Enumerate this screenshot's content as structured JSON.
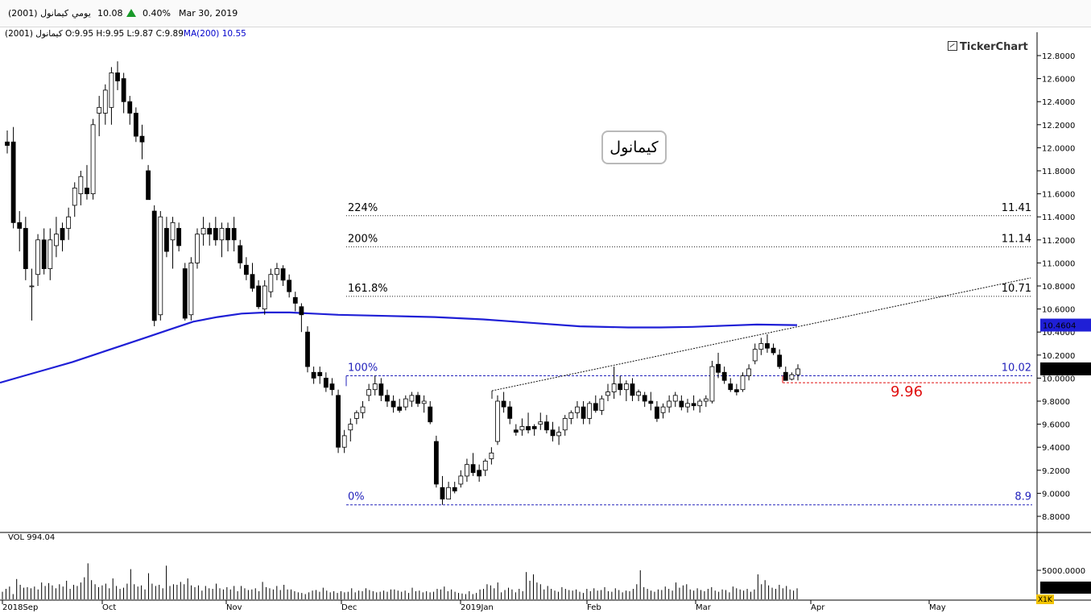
{
  "toolbar": {
    "symbol": "كيمانول (2001)",
    "period": "يومي",
    "price": "10.08",
    "change_pct": "0.40%",
    "date": "Mar 30, 2019"
  },
  "ohlc": {
    "name": "كيمانول (2001)",
    "open": "O:9.95",
    "high": "H:9.95",
    "low": "L:9.87",
    "close": "C:9.89",
    "ma_label": "MA(200)",
    "ma_value": "10.55"
  },
  "brand": "TickerChart",
  "title": "كيمانول",
  "volume": {
    "label": "VOL 994.04",
    "tick_label": "5000.0000",
    "current_box": "1701.3870",
    "scale_box": "X1K"
  },
  "colors": {
    "ma": "#1f1fd6",
    "level_blue": "#2222bb",
    "level_red": "#e01010",
    "current_box": "#000000",
    "ma_box": "#1f1fd6",
    "up_arrow": "#1a9a2a"
  },
  "chart_data": {
    "type": "candlestick",
    "ylim": [
      8.7,
      12.9
    ],
    "y_ticks": [
      "12.8000",
      "12.6000",
      "12.4000",
      "12.2000",
      "12.0000",
      "11.8000",
      "11.6000",
      "11.4000",
      "11.2000",
      "11.0000",
      "10.8000",
      "10.6000",
      "10.4000",
      "10.2000",
      "10.0000",
      "9.8000",
      "9.6000",
      "9.4000",
      "9.2000",
      "9.0000",
      "8.8000"
    ],
    "x_ticks": [
      "2018Sep",
      "Oct",
      "Nov",
      "Dec",
      "2019Jan",
      "Feb",
      "Mar",
      "Apr",
      "May"
    ],
    "current_price_box": "10.0800",
    "ma_box": "10.4604",
    "levels": [
      {
        "pct": "224%",
        "value_label": "11.41",
        "value": 11.41,
        "style": "dotted-gray"
      },
      {
        "pct": "200%",
        "value_label": "11.14",
        "value": 11.14,
        "style": "dotted-gray"
      },
      {
        "pct": "161.8%",
        "value_label": "10.71",
        "value": 10.71,
        "style": "dotted-gray"
      },
      {
        "pct": "100%",
        "value_label": "10.02",
        "value": 10.02,
        "style": "dashed-blue"
      },
      {
        "pct": "0%",
        "value_label": "8.9",
        "value": 8.9,
        "style": "dashed-blue"
      }
    ],
    "support_label": "9.96",
    "support_value": 9.96,
    "ohlc": [
      [
        12.05,
        12.15,
        11.95,
        12.02
      ],
      [
        12.05,
        12.18,
        11.3,
        11.35
      ],
      [
        11.35,
        11.45,
        11.1,
        11.3
      ],
      [
        11.3,
        11.4,
        10.85,
        10.95
      ],
      [
        10.8,
        10.95,
        10.5,
        10.8
      ],
      [
        10.9,
        11.25,
        10.8,
        11.2
      ],
      [
        11.2,
        11.3,
        10.9,
        10.95
      ],
      [
        10.95,
        11.3,
        10.85,
        11.2
      ],
      [
        11.15,
        11.4,
        11.05,
        11.25
      ],
      [
        11.3,
        11.35,
        11.1,
        11.2
      ],
      [
        11.3,
        11.48,
        11.2,
        11.4
      ],
      [
        11.5,
        11.7,
        11.4,
        11.65
      ],
      [
        11.6,
        11.8,
        11.5,
        11.75
      ],
      [
        11.65,
        11.85,
        11.55,
        11.6
      ],
      [
        11.6,
        12.25,
        11.55,
        12.2
      ],
      [
        12.3,
        12.45,
        12.1,
        12.35
      ],
      [
        12.3,
        12.55,
        12.2,
        12.5
      ],
      [
        12.35,
        12.7,
        12.2,
        12.65
      ],
      [
        12.65,
        12.75,
        12.5,
        12.58
      ],
      [
        12.6,
        12.65,
        12.3,
        12.4
      ],
      [
        12.4,
        12.45,
        12.2,
        12.3
      ],
      [
        12.3,
        12.35,
        12.05,
        12.1
      ],
      [
        12.1,
        12.2,
        11.9,
        12.05
      ],
      [
        11.8,
        11.85,
        11.55,
        11.55
      ],
      [
        11.45,
        11.5,
        10.45,
        10.5
      ],
      [
        10.55,
        11.45,
        10.5,
        11.4
      ],
      [
        11.3,
        11.4,
        11.05,
        11.1
      ],
      [
        11.2,
        11.4,
        10.95,
        11.35
      ],
      [
        11.3,
        11.35,
        11.1,
        11.15
      ],
      [
        10.95,
        11.0,
        10.5,
        10.52
      ],
      [
        10.55,
        11.05,
        10.5,
        11.0
      ],
      [
        11.0,
        11.3,
        10.95,
        11.25
      ],
      [
        11.25,
        11.4,
        11.15,
        11.3
      ],
      [
        11.3,
        11.35,
        11.15,
        11.25
      ],
      [
        11.3,
        11.4,
        11.15,
        11.2
      ],
      [
        11.2,
        11.35,
        11.05,
        11.3
      ],
      [
        11.3,
        11.35,
        11.1,
        11.2
      ],
      [
        11.3,
        11.4,
        11.1,
        11.2
      ],
      [
        11.15,
        11.2,
        10.95,
        11.0
      ],
      [
        10.98,
        11.05,
        10.85,
        10.9
      ],
      [
        10.9,
        11.0,
        10.75,
        10.78
      ],
      [
        10.8,
        10.85,
        10.6,
        10.62
      ],
      [
        10.6,
        10.85,
        10.55,
        10.8
      ],
      [
        10.75,
        10.95,
        10.7,
        10.9
      ],
      [
        10.9,
        11.0,
        10.85,
        10.95
      ],
      [
        10.95,
        10.98,
        10.8,
        10.85
      ],
      [
        10.85,
        10.9,
        10.7,
        10.75
      ],
      [
        10.7,
        10.75,
        10.58,
        10.65
      ],
      [
        10.62,
        10.65,
        10.4,
        10.55
      ],
      [
        10.4,
        10.45,
        10.05,
        10.1
      ],
      [
        10.05,
        10.1,
        9.95,
        10.0
      ],
      [
        10.05,
        10.1,
        9.95,
        10.02
      ],
      [
        10.0,
        10.05,
        9.88,
        9.92
      ],
      [
        9.95,
        10.0,
        9.85,
        9.9
      ],
      [
        9.85,
        9.9,
        9.35,
        9.4
      ],
      [
        9.4,
        9.55,
        9.35,
        9.5
      ],
      [
        9.55,
        9.65,
        9.45,
        9.6
      ],
      [
        9.65,
        9.72,
        9.6,
        9.7
      ],
      [
        9.7,
        9.8,
        9.65,
        9.75
      ],
      [
        9.85,
        9.95,
        9.8,
        9.9
      ],
      [
        9.9,
        10.02,
        9.85,
        9.95
      ],
      [
        9.95,
        10.0,
        9.8,
        9.85
      ],
      [
        9.85,
        9.9,
        9.75,
        9.8
      ],
      [
        9.8,
        9.85,
        9.7,
        9.75
      ],
      [
        9.75,
        9.82,
        9.7,
        9.72
      ],
      [
        9.75,
        9.85,
        9.72,
        9.82
      ],
      [
        9.8,
        9.88,
        9.75,
        9.85
      ],
      [
        9.85,
        9.88,
        9.75,
        9.78
      ],
      [
        9.78,
        9.85,
        9.7,
        9.8
      ],
      [
        9.75,
        9.8,
        9.6,
        9.62
      ],
      [
        9.45,
        9.5,
        9.05,
        9.08
      ],
      [
        9.05,
        9.15,
        8.9,
        8.95
      ],
      [
        8.95,
        9.1,
        8.95,
        9.05
      ],
      [
        9.05,
        9.1,
        9.0,
        9.02
      ],
      [
        9.08,
        9.2,
        9.05,
        9.15
      ],
      [
        9.15,
        9.3,
        9.1,
        9.25
      ],
      [
        9.25,
        9.35,
        9.15,
        9.18
      ],
      [
        9.2,
        9.25,
        9.1,
        9.15
      ],
      [
        9.2,
        9.3,
        9.15,
        9.28
      ],
      [
        9.3,
        9.4,
        9.25,
        9.35
      ],
      [
        9.45,
        9.85,
        9.42,
        9.8
      ],
      [
        9.8,
        9.88,
        9.7,
        9.75
      ],
      [
        9.75,
        9.8,
        9.6,
        9.65
      ],
      [
        9.55,
        9.6,
        9.5,
        9.53
      ],
      [
        9.55,
        9.65,
        9.5,
        9.58
      ],
      [
        9.58,
        9.7,
        9.52,
        9.55
      ],
      [
        9.58,
        9.6,
        9.5,
        9.56
      ],
      [
        9.6,
        9.7,
        9.55,
        9.62
      ],
      [
        9.62,
        9.68,
        9.52,
        9.55
      ],
      [
        9.55,
        9.62,
        9.45,
        9.5
      ],
      [
        9.5,
        9.58,
        9.42,
        9.53
      ],
      [
        9.55,
        9.68,
        9.5,
        9.65
      ],
      [
        9.65,
        9.72,
        9.6,
        9.7
      ],
      [
        9.7,
        9.8,
        9.65,
        9.75
      ],
      [
        9.75,
        9.8,
        9.6,
        9.65
      ],
      [
        9.65,
        9.8,
        9.6,
        9.78
      ],
      [
        9.78,
        9.85,
        9.7,
        9.72
      ],
      [
        9.72,
        9.85,
        9.68,
        9.82
      ],
      [
        9.85,
        9.95,
        9.8,
        9.88
      ],
      [
        9.88,
        10.1,
        9.82,
        9.95
      ],
      [
        9.95,
        10.02,
        9.85,
        9.9
      ],
      [
        9.9,
        9.98,
        9.8,
        9.95
      ],
      [
        9.95,
        10.0,
        9.8,
        9.85
      ],
      [
        9.85,
        9.9,
        9.8,
        9.88
      ],
      [
        9.85,
        9.88,
        9.75,
        9.8
      ],
      [
        9.8,
        9.88,
        9.72,
        9.78
      ],
      [
        9.75,
        9.8,
        9.62,
        9.65
      ],
      [
        9.7,
        9.78,
        9.65,
        9.75
      ],
      [
        9.75,
        9.85,
        9.7,
        9.8
      ],
      [
        9.8,
        9.88,
        9.75,
        9.85
      ],
      [
        9.8,
        9.85,
        9.72,
        9.75
      ],
      [
        9.75,
        9.82,
        9.7,
        9.78
      ],
      [
        9.78,
        9.85,
        9.72,
        9.76
      ],
      [
        9.76,
        9.82,
        9.7,
        9.8
      ],
      [
        9.8,
        9.85,
        9.75,
        9.82
      ],
      [
        9.8,
        10.15,
        9.78,
        10.1
      ],
      [
        10.12,
        10.22,
        10.0,
        10.05
      ],
      [
        10.05,
        10.1,
        9.95,
        9.98
      ],
      [
        9.95,
        10.0,
        9.88,
        9.9
      ],
      [
        9.9,
        9.95,
        9.85,
        9.88
      ],
      [
        9.9,
        10.05,
        9.88,
        10.02
      ],
      [
        10.02,
        10.12,
        9.98,
        10.08
      ],
      [
        10.15,
        10.3,
        10.12,
        10.25
      ],
      [
        10.25,
        10.35,
        10.2,
        10.3
      ],
      [
        10.3,
        10.38,
        10.22,
        10.26
      ],
      [
        10.26,
        10.3,
        10.2,
        10.22
      ],
      [
        10.2,
        10.25,
        10.08,
        10.1
      ],
      [
        10.05,
        10.1,
        9.98,
        9.98
      ],
      [
        9.99,
        10.05,
        9.98,
        10.03
      ],
      [
        10.03,
        10.12,
        9.98,
        10.08
      ]
    ],
    "ma200": [
      [
        0,
        9.96
      ],
      [
        30,
        10.02
      ],
      [
        60,
        10.08
      ],
      [
        90,
        10.14
      ],
      [
        120,
        10.21
      ],
      [
        150,
        10.28
      ],
      [
        180,
        10.35
      ],
      [
        210,
        10.42
      ],
      [
        240,
        10.49
      ],
      [
        270,
        10.53
      ],
      [
        300,
        10.56
      ],
      [
        330,
        10.57
      ],
      [
        360,
        10.57
      ],
      [
        420,
        10.55
      ],
      [
        480,
        10.54
      ],
      [
        540,
        10.53
      ],
      [
        600,
        10.51
      ],
      [
        660,
        10.48
      ],
      [
        720,
        10.45
      ],
      [
        780,
        10.44
      ],
      [
        820,
        10.44
      ],
      [
        860,
        10.445
      ],
      [
        900,
        10.455
      ],
      [
        940,
        10.465
      ],
      [
        990,
        10.46
      ]
    ],
    "trendline": [
      [
        611,
        9.89
      ],
      [
        1280,
        10.87
      ]
    ],
    "volume": [
      1300,
      1800,
      2200,
      900,
      3500,
      2500,
      2000,
      2100,
      1900,
      2200,
      1700,
      2900,
      2300,
      2800,
      2400,
      1900,
      2600,
      2200,
      3200,
      1800,
      2500,
      2300,
      2900,
      3800,
      6200,
      3300,
      2600,
      2100,
      2400,
      2700,
      1900,
      3600,
      2300,
      1800,
      2000,
      2700,
      5200,
      2600,
      2200,
      2400,
      1700,
      4500,
      2700,
      2300,
      2500,
      1900,
      5800,
      2300,
      2600,
      2500,
      3000,
      2600,
      3600,
      2400,
      2100,
      2400,
      1500,
      2300,
      1900,
      1800,
      2700,
      1900,
      1700,
      2100,
      1700,
      2300,
      1400,
      2300,
      1900,
      1600,
      1700,
      1900,
      1400,
      3000,
      2100,
      1900,
      1700,
      2300,
      1600,
      2500,
      1700,
      1700,
      1400,
      1200,
      1100,
      900,
      1200,
      1500,
      1600,
      1300,
      2000,
      1500,
      1200,
      1400,
      1100,
      1400,
      1200,
      1300,
      1900,
      1200,
      1500,
      1400,
      1900,
      1600,
      1400,
      1200,
      1300,
      1500,
      1300,
      1700,
      1700,
      1500,
      1300,
      1500,
      1100,
      2000,
      1400,
      1500,
      1200,
      1400,
      1200,
      1300,
      1800,
      1700,
      2200,
      1400,
      1700,
      1300,
      1100,
      1000,
      900,
      1400,
      900,
      1100,
      1700,
      1800,
      2600,
      2400,
      1900,
      2900,
      1200,
      1600,
      2000,
      1700,
      1200,
      1800,
      1400,
      4700,
      3200,
      4300,
      2900,
      2600,
      1700,
      2300,
      1800,
      1500,
      1300,
      2100,
      1800,
      1600,
      1500,
      1700,
      1300,
      1100,
      1800,
      1400,
      1900,
      1500,
      1600,
      2100,
      1400,
      1300,
      1900,
      1600,
      1200,
      1500,
      1400,
      1800,
      2600,
      5000,
      2100,
      1800,
      1500,
      1300,
      1700,
      1600,
      2200,
      1800,
      1500,
      2900,
      2000,
      2400,
      2600,
      1700,
      1500,
      1900,
      1600,
      1400,
      1800,
      2100,
      1500,
      1300,
      1700,
      1600,
      1200,
      2200,
      1900,
      1700,
      1500,
      1800,
      1300,
      1700,
      4300,
      2600,
      3300,
      2400,
      2000,
      1800,
      2500,
      1900,
      2300,
      1700,
      1500,
      1900
    ]
  }
}
